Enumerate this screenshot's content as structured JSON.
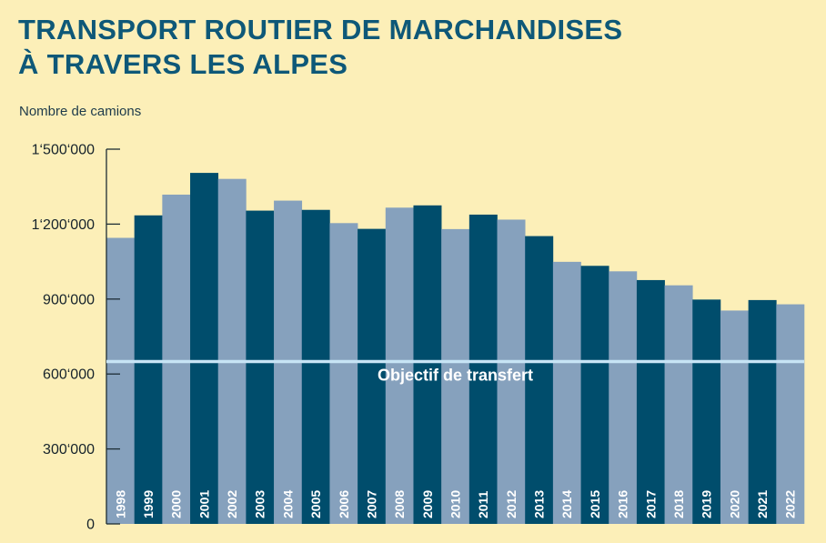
{
  "chart_data": {
    "type": "bar",
    "title_lines": [
      "TRANSPORT ROUTIER DE MARCHANDISES",
      "À TRAVERS LES ALPES"
    ],
    "ylabel": "Nombre de camions",
    "ylim": [
      0,
      1500000
    ],
    "yticks": [
      0,
      300000,
      600000,
      900000,
      1200000,
      1500000
    ],
    "ytick_labels": [
      "0",
      "300‘000",
      "600‘000",
      "900‘000",
      "1‘200‘000",
      "1‘500‘000"
    ],
    "categories": [
      "1998",
      "1999",
      "2000",
      "2001",
      "2002",
      "2003",
      "2004",
      "2005",
      "2006",
      "2007",
      "2008",
      "2009",
      "2010",
      "2011",
      "2012",
      "2013",
      "2014",
      "2015",
      "2016",
      "2017",
      "2018",
      "2019",
      "2020",
      "2021",
      "2022"
    ],
    "values": [
      1145000,
      1235000,
      1318000,
      1405000,
      1381000,
      1254000,
      1294000,
      1257000,
      1204000,
      1181000,
      1266000,
      1275000,
      1180000,
      1238000,
      1218000,
      1152000,
      1049000,
      1033000,
      1011000,
      976000,
      955000,
      898000,
      854000,
      896000,
      879000
    ],
    "grid": false,
    "reference_line": {
      "value": 650000,
      "label": "Objectif de transfert"
    },
    "colors": {
      "light": "#86a1bd",
      "dark": "#004d6c",
      "target": "#c7e4f5",
      "axis": "#1d2d35",
      "title": "#0e5878"
    }
  }
}
